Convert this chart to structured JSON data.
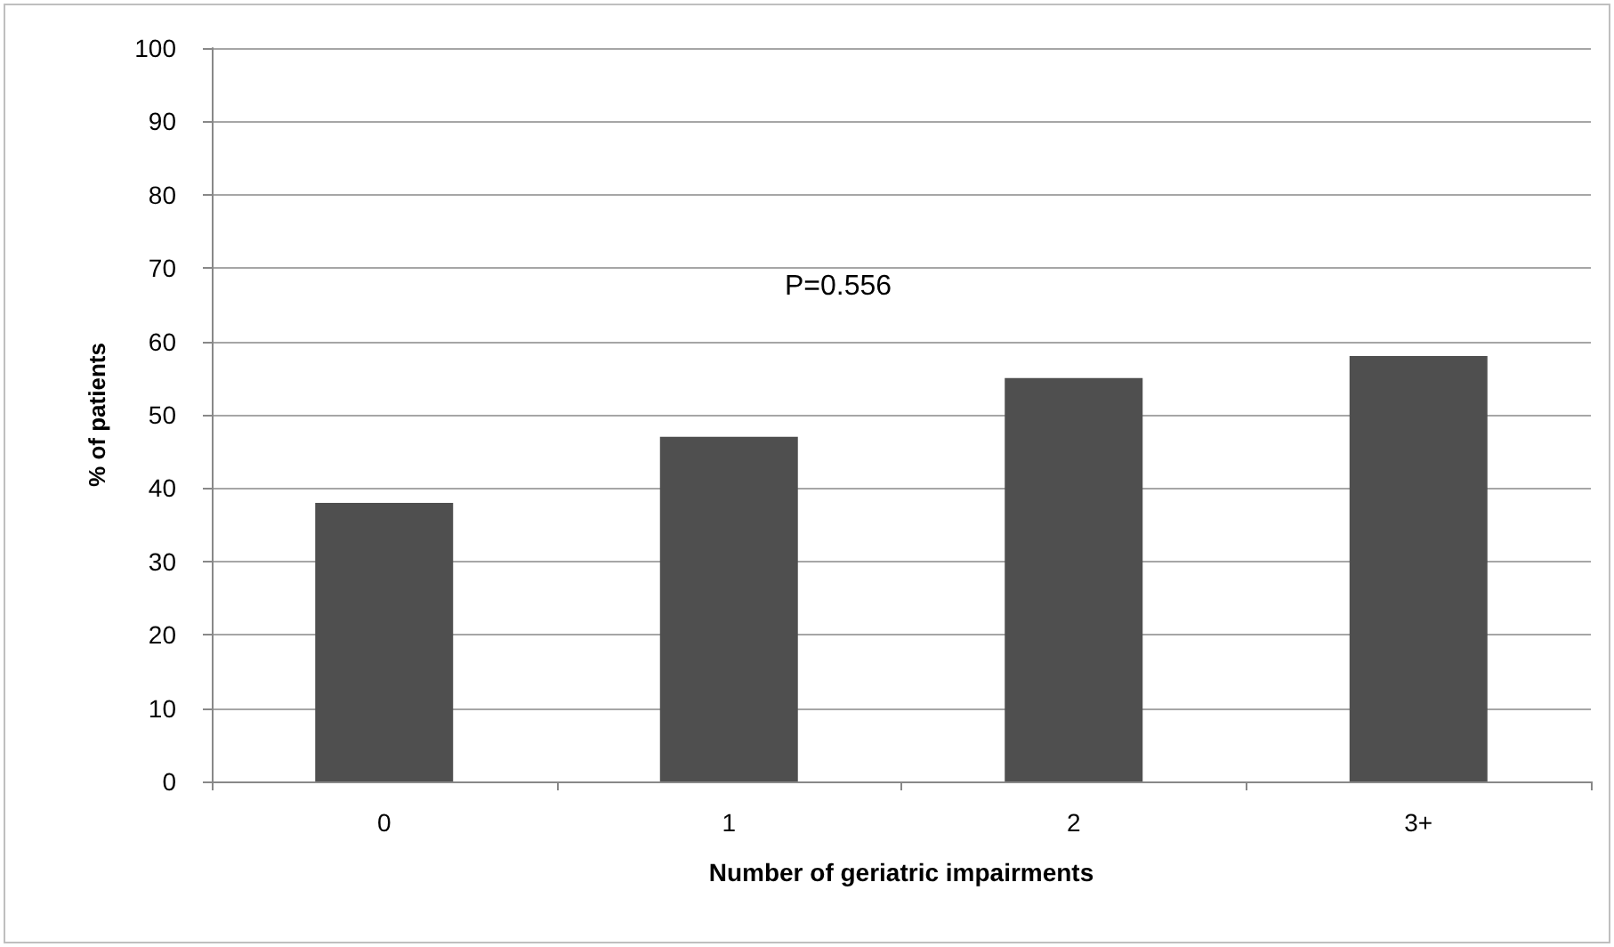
{
  "chart_data": {
    "type": "bar",
    "xlabel": "Number of geriatric impairments",
    "ylabel": "% of patients",
    "categories": [
      "0",
      "1",
      "2",
      "3+"
    ],
    "values": [
      38,
      47,
      55,
      58
    ],
    "color": "#4f4f4f",
    "ylim": [
      0,
      100
    ],
    "yticks": [
      0,
      10,
      20,
      30,
      40,
      50,
      60,
      70,
      80,
      90,
      100
    ],
    "grid": "y",
    "annotations": [
      "P=0.556"
    ]
  }
}
